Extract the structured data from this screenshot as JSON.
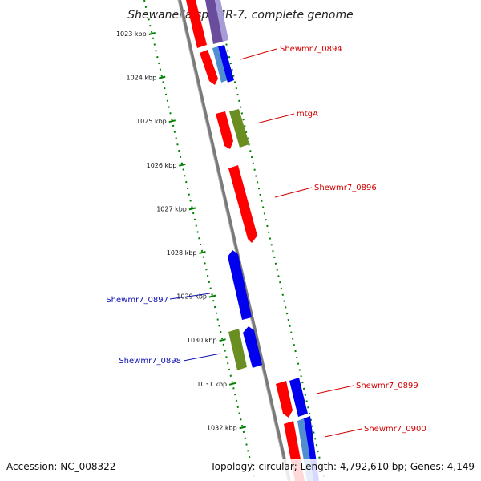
{
  "title": "Shewanella sp. MR-7, complete genome",
  "footer": {
    "accession": "Accession: NC_008322",
    "topology": "Topology: circular; Length: 4,792,610 bp; Genes: 4,149"
  },
  "colors": {
    "forward": "#ff0000",
    "reverse": "#0000ee",
    "rna_green": "#6b8e23",
    "backbone": "#808080",
    "scale": "#008000",
    "label_forward": "#d40000",
    "label_reverse": "#1010b0"
  },
  "ticks": [
    {
      "label": "1023 kbp"
    },
    {
      "label": "1024 kbp"
    },
    {
      "label": "1025 kbp"
    },
    {
      "label": "1026 kbp"
    },
    {
      "label": "1027 kbp"
    },
    {
      "label": "1028 kbp"
    },
    {
      "label": "1029 kbp"
    },
    {
      "label": "1030 kbp"
    },
    {
      "label": "1031 kbp"
    },
    {
      "label": "1032 kbp"
    }
  ],
  "gene_labels": [
    {
      "text": "Shewmr7_0894",
      "strand": "forward"
    },
    {
      "text": "mtgA",
      "strand": "forward"
    },
    {
      "text": "Shewmr7_0896",
      "strand": "forward"
    },
    {
      "text": "Shewmr7_0897",
      "strand": "reverse"
    },
    {
      "text": "Shewmr7_0898",
      "strand": "reverse"
    },
    {
      "text": "Shewmr7_0899",
      "strand": "forward"
    },
    {
      "text": "Shewmr7_0900",
      "strand": "forward"
    }
  ]
}
